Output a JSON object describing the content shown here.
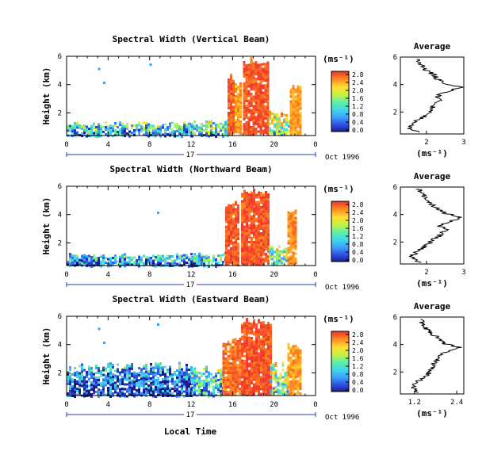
{
  "figure": {
    "xlabel": "Local Time",
    "date_label": "Oct 1996",
    "day_label": "17",
    "unit_label": "(ms⁻¹)"
  },
  "chart_data": [
    {
      "type": "heatmap",
      "title": "Spectral Width (Vertical Beam)",
      "xlabel": "Local Time",
      "ylabel": "Height (km)",
      "x_ticks": [
        "0",
        "4",
        "8",
        "12",
        "16",
        "20",
        "0"
      ],
      "x_range_hours": [
        0,
        24
      ],
      "y_ticks": [
        "6",
        "4",
        "2"
      ],
      "y_range_km": [
        0.4,
        6
      ],
      "colorbar": {
        "label": "(ms⁻¹)",
        "ticks": [
          "2.8",
          "2.4",
          "2.0",
          "1.6",
          "1.2",
          "0.8",
          "0.4",
          "0.0"
        ],
        "range": [
          0,
          2.8
        ],
        "colors": [
          "#1a1a8a",
          "#2f4fe0",
          "#3f9fff",
          "#40d8e8",
          "#60f0a0",
          "#c8f040",
          "#ffe030",
          "#ff9020",
          "#f23a2c"
        ]
      },
      "regions": [
        {
          "t0": 0.0,
          "t1": 12.0,
          "h0": 0.4,
          "h1": 1.4,
          "level": 0.35
        },
        {
          "t0": 12.0,
          "t1": 15.5,
          "h0": 0.4,
          "h1": 1.5,
          "level": 0.45
        },
        {
          "t0": 15.5,
          "t1": 16.0,
          "h0": 0.5,
          "h1": 4.8,
          "level": 0.95
        },
        {
          "t0": 16.2,
          "t1": 16.8,
          "h0": 0.6,
          "h1": 4.2,
          "level": 0.85
        },
        {
          "t0": 17.0,
          "t1": 19.5,
          "h0": 0.5,
          "h1": 6.0,
          "level": 0.96
        },
        {
          "t0": 19.5,
          "t1": 21.5,
          "h0": 0.5,
          "h1": 2.2,
          "level": 0.6
        },
        {
          "t0": 21.5,
          "t1": 22.5,
          "h0": 0.5,
          "h1": 4.0,
          "level": 0.85
        }
      ],
      "scatter_dots_hours": [
        3.5,
        8.0,
        3.0
      ],
      "average": {
        "title": "Average",
        "xlabel": "(ms⁻¹)",
        "x_ticks": [
          "2",
          "3"
        ],
        "xlim": [
          1.3,
          3.0
        ],
        "y_ticks": [
          "6",
          "4",
          "2"
        ],
        "ylim": [
          0.4,
          6.0
        ],
        "heights_km": [
          0.5,
          0.8,
          1.1,
          1.4,
          1.7,
          2.0,
          2.3,
          2.6,
          2.9,
          3.2,
          3.5,
          3.8,
          4.1,
          4.4,
          4.7,
          5.0,
          5.3,
          5.6,
          5.9
        ],
        "values": [
          1.8,
          1.55,
          1.6,
          1.75,
          1.95,
          2.05,
          2.15,
          2.25,
          2.35,
          2.3,
          2.55,
          2.9,
          2.5,
          2.3,
          2.2,
          2.0,
          1.9,
          1.8,
          1.75
        ]
      }
    },
    {
      "type": "heatmap",
      "title": "Spectral Width (Northward Beam)",
      "xlabel": "Local Time",
      "ylabel": "Height (km)",
      "x_ticks": [
        "0",
        "4",
        "8",
        "12",
        "16",
        "20",
        "0"
      ],
      "x_range_hours": [
        0,
        24
      ],
      "y_ticks": [
        "6",
        "4",
        "2"
      ],
      "y_range_km": [
        0.4,
        6
      ],
      "colorbar": {
        "label": "(ms⁻¹)",
        "ticks": [
          "2.8",
          "2.4",
          "2.0",
          "1.6",
          "1.2",
          "0.8",
          "0.4",
          "0.0"
        ],
        "range": [
          0,
          2.8
        ],
        "colors": [
          "#1a1a8a",
          "#2f4fe0",
          "#3f9fff",
          "#40d8e8",
          "#60f0a0",
          "#c8f040",
          "#ffe030",
          "#ff9020",
          "#f23a2c"
        ]
      },
      "regions": [
        {
          "t0": 0.0,
          "t1": 12.0,
          "h0": 0.4,
          "h1": 1.3,
          "level": 0.3
        },
        {
          "t0": 12.0,
          "t1": 15.3,
          "h0": 0.4,
          "h1": 1.4,
          "level": 0.4
        },
        {
          "t0": 15.3,
          "t1": 16.5,
          "h0": 0.5,
          "h1": 5.0,
          "level": 0.95
        },
        {
          "t0": 16.8,
          "t1": 19.5,
          "h0": 0.5,
          "h1": 6.0,
          "level": 0.96
        },
        {
          "t0": 19.5,
          "t1": 21.3,
          "h0": 0.5,
          "h1": 2.0,
          "level": 0.55
        },
        {
          "t0": 21.3,
          "t1": 22.2,
          "h0": 0.5,
          "h1": 4.4,
          "level": 0.88
        }
      ],
      "scatter_dots_hours": [
        8.7
      ],
      "average": {
        "title": "Average",
        "xlabel": "(ms⁻¹)",
        "x_ticks": [
          "2",
          "3"
        ],
        "xlim": [
          1.3,
          3.0
        ],
        "y_ticks": [
          "6",
          "4",
          "2"
        ],
        "ylim": [
          0.4,
          6.0
        ],
        "heights_km": [
          0.5,
          0.8,
          1.1,
          1.4,
          1.7,
          2.0,
          2.3,
          2.6,
          2.9,
          3.2,
          3.5,
          3.8,
          4.1,
          4.4,
          4.7,
          5.0,
          5.3,
          5.6,
          5.9
        ],
        "values": [
          1.85,
          1.6,
          1.65,
          1.8,
          1.95,
          2.1,
          2.25,
          2.4,
          2.5,
          2.35,
          2.6,
          2.95,
          2.5,
          2.3,
          2.15,
          2.0,
          1.95,
          1.85,
          1.8
        ]
      }
    },
    {
      "type": "heatmap",
      "title": "Spectral Width (Eastward Beam)",
      "xlabel": "Local Time",
      "ylabel": "Height (km)",
      "x_ticks": [
        "0",
        "4",
        "8",
        "12",
        "16",
        "20",
        "0"
      ],
      "x_range_hours": [
        0,
        24
      ],
      "y_ticks": [
        "6",
        "4",
        "2"
      ],
      "y_range_km": [
        0.4,
        6
      ],
      "colorbar": {
        "label": "(ms⁻¹)",
        "ticks": [
          "2.8",
          "2.4",
          "2.0",
          "1.6",
          "1.2",
          "0.8",
          "0.4",
          "0.0"
        ],
        "range": [
          0,
          2.8
        ],
        "colors": [
          "#1a1a8a",
          "#2f4fe0",
          "#3f9fff",
          "#40d8e8",
          "#60f0a0",
          "#c8f040",
          "#ffe030",
          "#ff9020",
          "#f23a2c"
        ]
      },
      "regions": [
        {
          "t0": 0.0,
          "t1": 12.0,
          "h0": 0.4,
          "h1": 2.8,
          "level": 0.2
        },
        {
          "t0": 12.0,
          "t1": 15.0,
          "h0": 0.4,
          "h1": 2.5,
          "level": 0.4
        },
        {
          "t0": 15.0,
          "t1": 16.8,
          "h0": 0.5,
          "h1": 4.5,
          "level": 0.92
        },
        {
          "t0": 16.8,
          "t1": 19.6,
          "h0": 0.5,
          "h1": 6.0,
          "level": 0.96
        },
        {
          "t0": 19.6,
          "t1": 21.3,
          "h0": 0.5,
          "h1": 2.8,
          "level": 0.55
        },
        {
          "t0": 21.3,
          "t1": 22.6,
          "h0": 0.5,
          "h1": 4.2,
          "level": 0.85
        }
      ],
      "scatter_dots_hours": [
        3.5,
        8.7,
        3.0
      ],
      "average": {
        "title": "Average",
        "xlabel": "(ms⁻¹)",
        "x_ticks": [
          "1.2",
          "2.4"
        ],
        "xlim": [
          0.8,
          2.6
        ],
        "y_ticks": [
          "6",
          "4",
          "2"
        ],
        "ylim": [
          0.4,
          6.0
        ],
        "heights_km": [
          0.5,
          0.8,
          1.1,
          1.4,
          1.7,
          2.0,
          2.3,
          2.6,
          2.9,
          3.2,
          3.5,
          3.8,
          4.1,
          4.4,
          4.7,
          5.0,
          5.3,
          5.6,
          5.9
        ],
        "values": [
          1.3,
          1.15,
          1.2,
          1.35,
          1.5,
          1.65,
          1.7,
          1.75,
          1.85,
          1.95,
          2.1,
          2.45,
          2.0,
          1.9,
          1.75,
          1.6,
          1.5,
          1.4,
          1.35
        ]
      }
    }
  ]
}
